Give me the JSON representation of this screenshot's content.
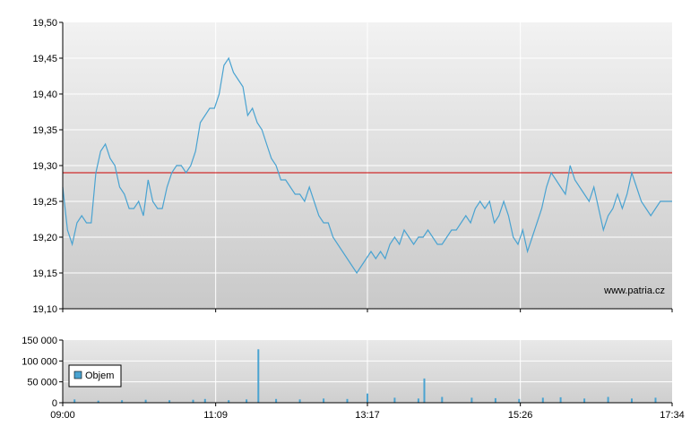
{
  "chart_data": [
    {
      "type": "line",
      "watermark": "www.patria.cz",
      "y_tick_labels": [
        "19,50",
        "19,45",
        "19,40",
        "19,35",
        "19,30",
        "19,25",
        "19,20",
        "19,15",
        "19,10"
      ],
      "ylim": [
        19.1,
        19.5
      ],
      "reference_line": {
        "value": 19.29,
        "color": "#cc0000"
      },
      "line_color": "#4aa3d1",
      "series": [
        {
          "points": [
            [
              "09:00",
              19.27
            ],
            [
              "09:04",
              19.21
            ],
            [
              "09:08",
              19.19
            ],
            [
              "09:12",
              19.22
            ],
            [
              "09:16",
              19.23
            ],
            [
              "09:20",
              19.22
            ],
            [
              "09:24",
              19.22
            ],
            [
              "09:28",
              19.29
            ],
            [
              "09:32",
              19.32
            ],
            [
              "09:36",
              19.33
            ],
            [
              "09:40",
              19.31
            ],
            [
              "09:44",
              19.3
            ],
            [
              "09:48",
              19.27
            ],
            [
              "09:52",
              19.26
            ],
            [
              "09:56",
              19.24
            ],
            [
              "10:00",
              19.24
            ],
            [
              "10:04",
              19.25
            ],
            [
              "10:08",
              19.23
            ],
            [
              "10:12",
              19.28
            ],
            [
              "10:16",
              19.25
            ],
            [
              "10:20",
              19.24
            ],
            [
              "10:24",
              19.24
            ],
            [
              "10:28",
              19.27
            ],
            [
              "10:32",
              19.29
            ],
            [
              "10:36",
              19.3
            ],
            [
              "10:40",
              19.3
            ],
            [
              "10:44",
              19.29
            ],
            [
              "10:48",
              19.3
            ],
            [
              "10:52",
              19.32
            ],
            [
              "10:56",
              19.36
            ],
            [
              "11:00",
              19.37
            ],
            [
              "11:04",
              19.38
            ],
            [
              "11:08",
              19.38
            ],
            [
              "11:12",
              19.4
            ],
            [
              "11:16",
              19.44
            ],
            [
              "11:20",
              19.45
            ],
            [
              "11:24",
              19.43
            ],
            [
              "11:28",
              19.42
            ],
            [
              "11:32",
              19.41
            ],
            [
              "11:36",
              19.37
            ],
            [
              "11:40",
              19.38
            ],
            [
              "11:44",
              19.36
            ],
            [
              "11:48",
              19.35
            ],
            [
              "11:52",
              19.33
            ],
            [
              "11:56",
              19.31
            ],
            [
              "12:00",
              19.3
            ],
            [
              "12:04",
              19.28
            ],
            [
              "12:08",
              19.28
            ],
            [
              "12:12",
              19.27
            ],
            [
              "12:16",
              19.26
            ],
            [
              "12:20",
              19.26
            ],
            [
              "12:24",
              19.25
            ],
            [
              "12:28",
              19.27
            ],
            [
              "12:32",
              19.25
            ],
            [
              "12:36",
              19.23
            ],
            [
              "12:40",
              19.22
            ],
            [
              "12:44",
              19.22
            ],
            [
              "12:48",
              19.2
            ],
            [
              "12:52",
              19.19
            ],
            [
              "12:56",
              19.18
            ],
            [
              "13:00",
              19.17
            ],
            [
              "13:04",
              19.16
            ],
            [
              "13:08",
              19.15
            ],
            [
              "13:12",
              19.16
            ],
            [
              "13:16",
              19.17
            ],
            [
              "13:20",
              19.18
            ],
            [
              "13:24",
              19.17
            ],
            [
              "13:28",
              19.18
            ],
            [
              "13:32",
              19.17
            ],
            [
              "13:36",
              19.19
            ],
            [
              "13:40",
              19.2
            ],
            [
              "13:44",
              19.19
            ],
            [
              "13:48",
              19.21
            ],
            [
              "13:52",
              19.2
            ],
            [
              "13:56",
              19.19
            ],
            [
              "14:00",
              19.2
            ],
            [
              "14:04",
              19.2
            ],
            [
              "14:08",
              19.21
            ],
            [
              "14:12",
              19.2
            ],
            [
              "14:16",
              19.19
            ],
            [
              "14:20",
              19.19
            ],
            [
              "14:24",
              19.2
            ],
            [
              "14:28",
              19.21
            ],
            [
              "14:32",
              19.21
            ],
            [
              "14:36",
              19.22
            ],
            [
              "14:40",
              19.23
            ],
            [
              "14:44",
              19.22
            ],
            [
              "14:48",
              19.24
            ],
            [
              "14:52",
              19.25
            ],
            [
              "14:56",
              19.24
            ],
            [
              "15:00",
              19.25
            ],
            [
              "15:04",
              19.22
            ],
            [
              "15:08",
              19.23
            ],
            [
              "15:12",
              19.25
            ],
            [
              "15:16",
              19.23
            ],
            [
              "15:20",
              19.2
            ],
            [
              "15:24",
              19.19
            ],
            [
              "15:28",
              19.21
            ],
            [
              "15:32",
              19.18
            ],
            [
              "15:36",
              19.2
            ],
            [
              "15:40",
              19.22
            ],
            [
              "15:44",
              19.24
            ],
            [
              "15:48",
              19.27
            ],
            [
              "15:52",
              19.29
            ],
            [
              "15:56",
              19.28
            ],
            [
              "16:00",
              19.27
            ],
            [
              "16:04",
              19.26
            ],
            [
              "16:08",
              19.3
            ],
            [
              "16:12",
              19.28
            ],
            [
              "16:16",
              19.27
            ],
            [
              "16:20",
              19.26
            ],
            [
              "16:24",
              19.25
            ],
            [
              "16:28",
              19.27
            ],
            [
              "16:32",
              19.24
            ],
            [
              "16:36",
              19.21
            ],
            [
              "16:40",
              19.23
            ],
            [
              "16:44",
              19.24
            ],
            [
              "16:48",
              19.26
            ],
            [
              "16:52",
              19.24
            ],
            [
              "16:56",
              19.26
            ],
            [
              "17:00",
              19.29
            ],
            [
              "17:04",
              19.27
            ],
            [
              "17:08",
              19.25
            ],
            [
              "17:12",
              19.24
            ],
            [
              "17:16",
              19.23
            ],
            [
              "17:20",
              19.24
            ],
            [
              "17:24",
              19.25
            ],
            [
              "17:28",
              19.25
            ],
            [
              "17:34",
              19.25
            ]
          ]
        }
      ]
    },
    {
      "type": "bar",
      "y_tick_labels": [
        "150 000",
        "100 000",
        "50 000",
        "0"
      ],
      "ylim": [
        0,
        150000
      ],
      "bar_color": "#4aa3d1",
      "legend": {
        "label": "Objem",
        "color": "#4aa3d1"
      },
      "x_tick_labels": [
        "09:00",
        "11:09",
        "13:17",
        "15:26",
        "17:34"
      ],
      "series": [
        {
          "name": "Objem",
          "points": [
            [
              "09:10",
              8000
            ],
            [
              "09:30",
              5000
            ],
            [
              "09:50",
              6000
            ],
            [
              "10:10",
              7000
            ],
            [
              "10:30",
              6000
            ],
            [
              "10:50",
              7000
            ],
            [
              "11:00",
              9000
            ],
            [
              "11:20",
              6000
            ],
            [
              "11:35",
              8000
            ],
            [
              "11:45",
              128000
            ],
            [
              "12:00",
              9000
            ],
            [
              "12:20",
              8000
            ],
            [
              "12:40",
              10000
            ],
            [
              "13:00",
              9000
            ],
            [
              "13:17",
              22000
            ],
            [
              "13:40",
              12000
            ],
            [
              "14:00",
              10000
            ],
            [
              "14:05",
              58000
            ],
            [
              "14:20",
              14000
            ],
            [
              "14:45",
              12000
            ],
            [
              "15:05",
              11000
            ],
            [
              "15:25",
              9000
            ],
            [
              "15:45",
              12000
            ],
            [
              "16:00",
              13000
            ],
            [
              "16:20",
              10000
            ],
            [
              "16:40",
              14000
            ],
            [
              "17:00",
              10000
            ],
            [
              "17:20",
              12000
            ]
          ]
        }
      ]
    }
  ]
}
